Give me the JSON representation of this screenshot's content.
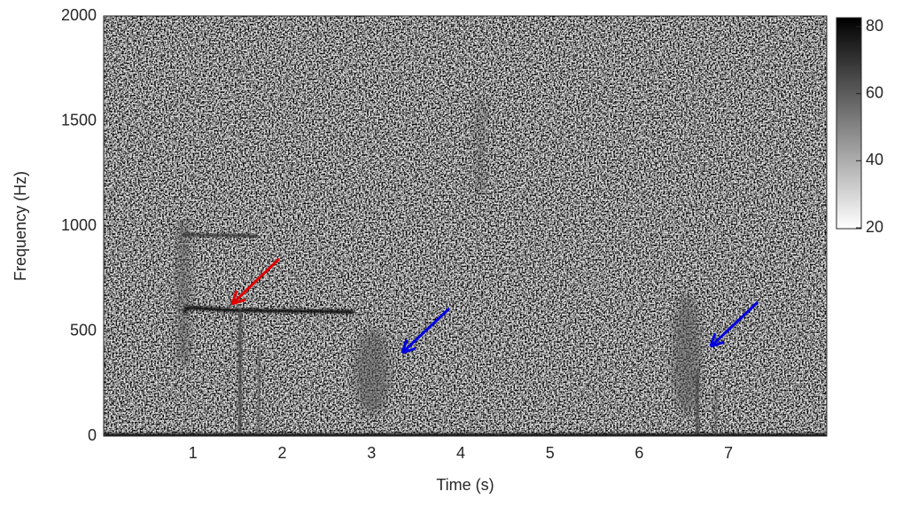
{
  "chart_data": {
    "type": "spectrogram",
    "x_label": "Time (s)",
    "y_label": "Frequency (Hz)",
    "xlim": [
      0,
      8.1
    ],
    "xticks": [
      1,
      2,
      3,
      4,
      5,
      6,
      7
    ],
    "ylim": [
      0,
      2000
    ],
    "yticks": [
      0,
      500,
      1000,
      1500,
      2000
    ],
    "colorbar": {
      "lim": [
        20,
        80
      ],
      "ticks": [
        20,
        40,
        60,
        80
      ]
    }
  }
}
